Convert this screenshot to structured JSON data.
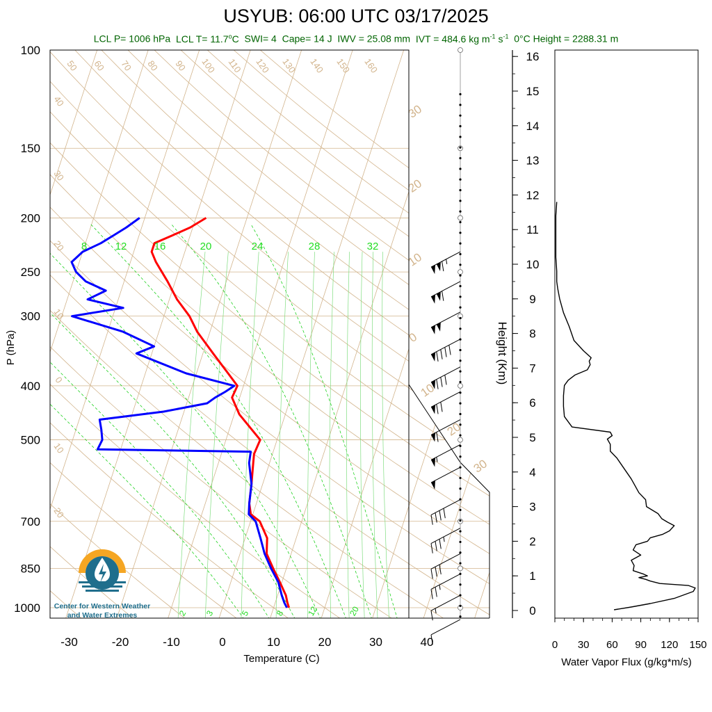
{
  "header": {
    "title": "USYUB: 06:00 UTC 03/17/2025",
    "lcl_p": "LCL P= 1006 hPa",
    "lcl_t_pre": "LCL T= 11.7",
    "lcl_t_unit": "C",
    "swi": "SWI= 4",
    "cape": "Cape= 14 J",
    "iwv": "IWV = 25.08 mm",
    "ivt_pre": "IVT = 484.6 kg m",
    "ivt_exp1": "-1",
    "ivt_s": " s",
    "ivt_exp2": "-1",
    "zero_height": "0°C Height = 2288.31 m"
  },
  "logo": {
    "line1": "Center for Western Weather",
    "line2": "and Water Extremes"
  },
  "colors": {
    "temperature": "#ff0000",
    "dewpoint": "#0000ff",
    "isotherm_skew": "#d2b48c",
    "mixing_ratio": "#00cc00",
    "title_sub": "#006400",
    "logo_orange": "#f5a623",
    "logo_teal": "#1f6e8c"
  },
  "chart_data": [
    {
      "type": "skewt",
      "xlabel": "Temperature (C)",
      "ylabel": "P (hPa)",
      "x_ticks": [
        -30,
        -20,
        -10,
        0,
        10,
        20,
        30,
        40
      ],
      "xlim": [
        -34,
        52
      ],
      "y_ticks": [
        100,
        150,
        200,
        250,
        300,
        400,
        500,
        700,
        850,
        1000
      ],
      "ylim": [
        1050,
        100
      ],
      "y_scale": "log",
      "isotherm_labels": [
        50,
        60,
        70,
        80,
        90,
        100,
        110,
        120,
        130,
        140,
        150,
        160
      ],
      "dry_adiabat_labels": [
        40,
        30,
        20,
        10,
        0,
        -10,
        -20
      ],
      "right_theta_labels": [
        30,
        20,
        10,
        0,
        10,
        20,
        30
      ],
      "mixing_ratio_top_labels": [
        8,
        12,
        16,
        20,
        24,
        28,
        32
      ],
      "mixing_ratio_bottom_labels": [
        2,
        3,
        5,
        8,
        12,
        20
      ],
      "temperature_profile": {
        "name": "Temperature",
        "p": [
          1000,
          980,
          950,
          900,
          850,
          800,
          750,
          700,
          680,
          650,
          600,
          550,
          530,
          500,
          450,
          420,
          400,
          380,
          350,
          320,
          300,
          280,
          260,
          240,
          230,
          222,
          215,
          208,
          200
        ],
        "t": [
          13.0,
          12.4,
          11.6,
          9.6,
          7.4,
          5.2,
          4.3,
          1.8,
          -0.4,
          -1.4,
          -2.2,
          -3.2,
          -3.6,
          -3.3,
          -9.0,
          -11.5,
          -11.2,
          -13.8,
          -18.0,
          -22.5,
          -25.0,
          -28.5,
          -31.5,
          -35.0,
          -36.5,
          -36.5,
          -33.5,
          -30.5,
          -28.0
        ]
      },
      "dewpoint_profile": {
        "name": "Dewpoint",
        "p": [
          1000,
          980,
          950,
          900,
          850,
          800,
          750,
          700,
          680,
          650,
          600,
          550,
          525,
          520,
          500,
          480,
          460,
          445,
          430,
          420,
          410,
          400,
          380,
          350,
          340,
          320,
          300,
          290,
          280,
          270,
          260,
          250,
          240,
          230,
          222,
          215,
          208,
          200
        ],
        "t": [
          12.6,
          11.8,
          10.8,
          9.3,
          7.0,
          4.8,
          3.0,
          1.0,
          -0.8,
          -1.4,
          -2.2,
          -4.0,
          -4.4,
          -34.5,
          -34.2,
          -35.0,
          -36.0,
          -24.0,
          -16.0,
          -14.8,
          -13.2,
          -11.8,
          -22.0,
          -33.0,
          -30.0,
          -37.0,
          -48.0,
          -38.5,
          -46.0,
          -43.0,
          -47.5,
          -50.0,
          -51.5,
          -50.0,
          -47.0,
          -45.0,
          -43.0,
          -41.0
        ]
      },
      "wind_barbs": [
        {
          "p": 230,
          "speed_kt": 115,
          "dir": 250
        },
        {
          "p": 260,
          "speed_kt": 110,
          "dir": 250
        },
        {
          "p": 295,
          "speed_kt": 100,
          "dir": 250
        },
        {
          "p": 330,
          "speed_kt": 90,
          "dir": 250
        },
        {
          "p": 370,
          "speed_kt": 80,
          "dir": 250
        },
        {
          "p": 410,
          "speed_kt": 70,
          "dir": 250
        },
        {
          "p": 460,
          "speed_kt": 60,
          "dir": 250
        },
        {
          "p": 510,
          "speed_kt": 55,
          "dir": 250
        },
        {
          "p": 560,
          "speed_kt": 50,
          "dir": 250
        },
        {
          "p": 640,
          "speed_kt": 40,
          "dir": 235
        },
        {
          "p": 720,
          "speed_kt": 35,
          "dir": 230
        },
        {
          "p": 800,
          "speed_kt": 30,
          "dir": 225
        },
        {
          "p": 870,
          "speed_kt": 25,
          "dir": 200
        },
        {
          "p": 950,
          "speed_kt": 15,
          "dir": 200
        },
        {
          "p": 1050,
          "speed_kt": 10,
          "dir": 180
        }
      ]
    },
    {
      "type": "line",
      "xlabel": "Water Vapor Flux (g/kg*m/s)",
      "ylabel": "Height (Km)",
      "x_ticks": [
        0,
        30,
        60,
        90,
        120,
        150
      ],
      "xlim": [
        0,
        150
      ],
      "y_ticks": [
        0,
        1,
        2,
        3,
        4,
        5,
        6,
        7,
        8,
        9,
        10,
        11,
        12,
        13,
        14,
        15,
        16
      ],
      "ylim": [
        -0.2,
        16.3
      ],
      "series": [
        {
          "height_km": [
            0.02,
            0.1,
            0.2,
            0.35,
            0.45,
            0.55,
            0.65,
            0.72,
            0.78,
            0.85,
            0.9,
            0.95,
            1.0,
            1.05,
            1.15,
            1.3,
            1.45,
            1.6,
            1.75,
            1.9,
            2.0,
            2.1,
            2.2,
            2.3,
            2.45,
            2.55,
            2.65,
            2.8,
            3.0,
            3.2,
            3.4,
            3.6,
            3.8,
            4.0,
            4.2,
            4.4,
            4.6,
            4.8,
            4.95,
            5.05,
            5.15,
            5.3,
            5.6,
            5.9,
            6.2,
            6.5,
            6.65,
            6.8,
            6.95,
            7.1,
            7.2,
            7.3,
            7.5,
            7.8,
            8.2,
            8.6,
            9.0,
            9.3,
            9.5,
            9.8,
            10.2,
            10.6,
            11.0,
            11.4,
            11.8
          ],
          "flux": [
            62,
            80,
            100,
            125,
            135,
            145,
            147,
            140,
            110,
            100,
            95,
            88,
            97,
            93,
            82,
            83,
            80,
            90,
            82,
            85,
            97,
            100,
            113,
            120,
            125,
            118,
            112,
            108,
            96,
            95,
            88,
            84,
            80,
            75,
            70,
            65,
            58,
            58,
            55,
            60,
            58,
            18,
            10,
            9,
            9,
            10,
            14,
            21,
            34,
            37,
            36,
            38,
            30,
            20,
            15,
            9,
            5,
            3,
            2,
            2,
            1,
            1,
            1,
            1,
            2
          ]
        }
      ]
    }
  ]
}
